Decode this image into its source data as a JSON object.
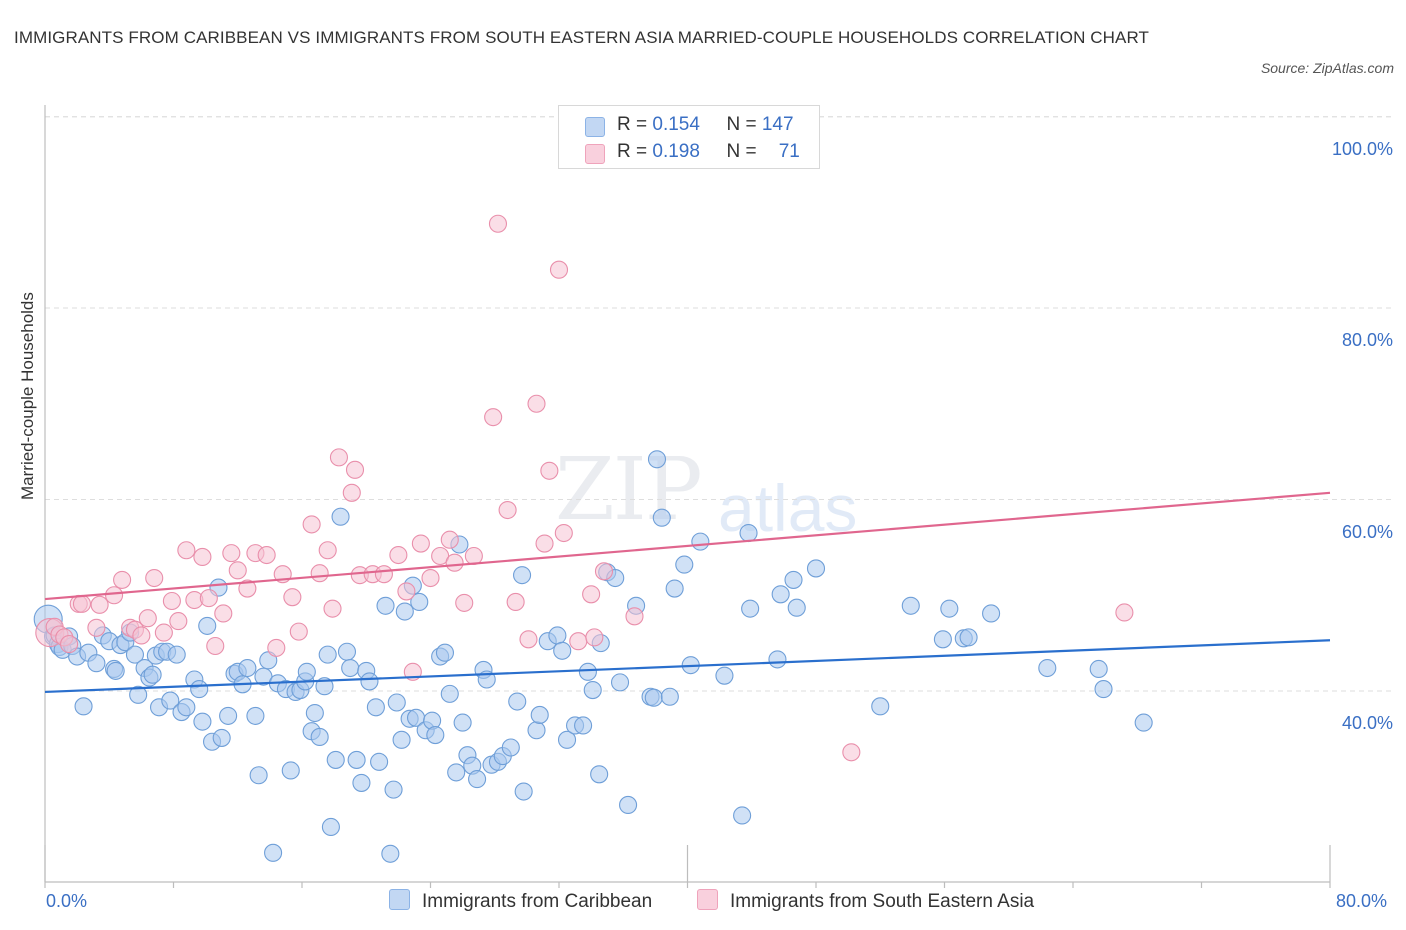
{
  "title": "IMMIGRANTS FROM CARIBBEAN VS IMMIGRANTS FROM SOUTH EASTERN ASIA MARRIED-COUPLE HOUSEHOLDS CORRELATION CHART",
  "source": "Source: ZipAtlas.com",
  "watermark": {
    "zip": "ZIP",
    "atlas": "atlas"
  },
  "legend": {
    "series1": {
      "r_label": "R = ",
      "r_value": "0.154",
      "n_label": "N = ",
      "n_value": "147"
    },
    "series2": {
      "r_label": "R = ",
      "r_value": "0.198",
      "n_label": "N = ",
      "n_value": "71"
    }
  },
  "colors": {
    "blue_fill": "#aac8ef",
    "blue_stroke": "#6f9fd8",
    "blue_line": "#2a6fcd",
    "pink_fill": "#f6c3d3",
    "pink_stroke": "#e98fab",
    "pink_line": "#e0668e",
    "axis_text": "#3a6fc4"
  },
  "chart_data": {
    "type": "scatter",
    "title": "IMMIGRANTS FROM CARIBBEAN VS IMMIGRANTS FROM SOUTH EASTERN ASIA MARRIED-COUPLE HOUSEHOLDS CORRELATION CHART",
    "xlabel": "",
    "ylabel": "Married-couple Households",
    "xlim": [
      0,
      80
    ],
    "ylim": [
      20,
      104
    ],
    "x_tick_labels": [
      "0.0%",
      "80.0%"
    ],
    "y_ticks": [
      40,
      60,
      80,
      100
    ],
    "y_tick_labels": [
      "40.0%",
      "60.0%",
      "80.0%",
      "100.0%"
    ],
    "grid": true,
    "legend_position": "bottom",
    "series": [
      {
        "name": "Immigrants from Caribbean",
        "R": 0.154,
        "N": 147,
        "trend": {
          "x": [
            0,
            80
          ],
          "y": [
            39.9,
            45.3
          ]
        },
        "points": [
          [
            0.2,
            47.5
          ],
          [
            0.5,
            45.7
          ],
          [
            0.6,
            45.8
          ],
          [
            0.8,
            44.9
          ],
          [
            0.9,
            44.6
          ],
          [
            1.1,
            44.3
          ],
          [
            1.5,
            45.7
          ],
          [
            1.7,
            44.7
          ],
          [
            2.0,
            43.6
          ],
          [
            2.4,
            38.4
          ],
          [
            2.7,
            44.0
          ],
          [
            3.2,
            42.9
          ],
          [
            3.6,
            45.8
          ],
          [
            4.0,
            45.2
          ],
          [
            4.3,
            42.3
          ],
          [
            4.4,
            42.1
          ],
          [
            4.7,
            44.8
          ],
          [
            5.0,
            45.1
          ],
          [
            5.3,
            46.1
          ],
          [
            5.6,
            43.8
          ],
          [
            5.8,
            39.6
          ],
          [
            6.2,
            42.4
          ],
          [
            6.5,
            41.4
          ],
          [
            6.7,
            41.7
          ],
          [
            6.9,
            43.7
          ],
          [
            7.1,
            38.3
          ],
          [
            7.3,
            44.1
          ],
          [
            7.6,
            44.1
          ],
          [
            7.8,
            39.0
          ],
          [
            8.2,
            43.8
          ],
          [
            8.5,
            37.8
          ],
          [
            8.8,
            38.3
          ],
          [
            9.3,
            41.2
          ],
          [
            9.6,
            40.2
          ],
          [
            9.8,
            36.8
          ],
          [
            10.1,
            46.8
          ],
          [
            10.4,
            34.7
          ],
          [
            10.8,
            50.8
          ],
          [
            11.0,
            35.1
          ],
          [
            11.4,
            37.4
          ],
          [
            11.8,
            41.8
          ],
          [
            12.0,
            42.0
          ],
          [
            12.3,
            40.7
          ],
          [
            12.6,
            42.4
          ],
          [
            13.1,
            37.4
          ],
          [
            13.3,
            31.2
          ],
          [
            13.6,
            41.5
          ],
          [
            13.9,
            43.2
          ],
          [
            14.2,
            23.1
          ],
          [
            14.5,
            40.8
          ],
          [
            15.0,
            40.2
          ],
          [
            15.3,
            31.7
          ],
          [
            15.6,
            39.9
          ],
          [
            15.9,
            40.1
          ],
          [
            16.2,
            41.0
          ],
          [
            16.3,
            42.0
          ],
          [
            16.6,
            35.8
          ],
          [
            16.8,
            37.7
          ],
          [
            17.1,
            35.2
          ],
          [
            17.4,
            40.5
          ],
          [
            17.6,
            43.8
          ],
          [
            17.8,
            25.8
          ],
          [
            18.1,
            32.8
          ],
          [
            18.4,
            58.2
          ],
          [
            18.8,
            44.1
          ],
          [
            19.0,
            42.4
          ],
          [
            19.4,
            32.8
          ],
          [
            19.7,
            30.4
          ],
          [
            20.0,
            42.1
          ],
          [
            20.2,
            41.0
          ],
          [
            20.6,
            38.3
          ],
          [
            20.8,
            32.6
          ],
          [
            21.2,
            48.9
          ],
          [
            21.5,
            23.0
          ],
          [
            21.7,
            29.7
          ],
          [
            21.9,
            38.8
          ],
          [
            22.2,
            34.9
          ],
          [
            22.4,
            48.3
          ],
          [
            22.7,
            37.1
          ],
          [
            22.9,
            51.0
          ],
          [
            23.1,
            37.2
          ],
          [
            23.3,
            49.3
          ],
          [
            23.7,
            35.9
          ],
          [
            24.1,
            36.9
          ],
          [
            24.3,
            35.4
          ],
          [
            24.6,
            43.6
          ],
          [
            24.9,
            44.0
          ],
          [
            25.2,
            39.7
          ],
          [
            25.6,
            31.5
          ],
          [
            25.8,
            55.3
          ],
          [
            26.0,
            36.7
          ],
          [
            26.3,
            33.3
          ],
          [
            26.6,
            32.2
          ],
          [
            26.9,
            30.8
          ],
          [
            27.3,
            42.2
          ],
          [
            27.5,
            41.2
          ],
          [
            27.8,
            32.3
          ],
          [
            28.2,
            32.6
          ],
          [
            28.5,
            33.2
          ],
          [
            29.0,
            34.1
          ],
          [
            29.4,
            38.9
          ],
          [
            29.7,
            52.1
          ],
          [
            29.8,
            29.5
          ],
          [
            30.6,
            35.9
          ],
          [
            30.8,
            37.5
          ],
          [
            31.3,
            45.2
          ],
          [
            31.9,
            45.8
          ],
          [
            32.2,
            44.2
          ],
          [
            32.5,
            34.9
          ],
          [
            33.0,
            36.4
          ],
          [
            33.5,
            36.4
          ],
          [
            33.8,
            42.0
          ],
          [
            34.1,
            40.1
          ],
          [
            34.5,
            31.3
          ],
          [
            34.6,
            45.0
          ],
          [
            35.0,
            52.4
          ],
          [
            35.5,
            51.8
          ],
          [
            35.8,
            40.9
          ],
          [
            36.3,
            28.1
          ],
          [
            36.8,
            48.9
          ],
          [
            37.7,
            39.4
          ],
          [
            37.9,
            39.3
          ],
          [
            38.1,
            64.2
          ],
          [
            38.4,
            58.1
          ],
          [
            38.9,
            39.4
          ],
          [
            39.2,
            50.7
          ],
          [
            39.8,
            53.2
          ],
          [
            40.2,
            42.7
          ],
          [
            40.8,
            55.6
          ],
          [
            42.3,
            41.6
          ],
          [
            43.4,
            27.0
          ],
          [
            43.8,
            56.5
          ],
          [
            43.9,
            48.6
          ],
          [
            45.6,
            43.3
          ],
          [
            45.8,
            50.1
          ],
          [
            46.6,
            51.6
          ],
          [
            46.8,
            48.7
          ],
          [
            48.0,
            52.8
          ],
          [
            52.0,
            38.4
          ],
          [
            53.9,
            48.9
          ],
          [
            55.9,
            45.4
          ],
          [
            56.3,
            48.6
          ],
          [
            57.2,
            45.5
          ],
          [
            57.5,
            45.6
          ],
          [
            58.9,
            48.1
          ],
          [
            62.4,
            42.4
          ],
          [
            65.6,
            42.3
          ],
          [
            65.9,
            40.2
          ],
          [
            68.4,
            36.7
          ]
        ]
      },
      {
        "name": "Immigrants from South Eastern Asia",
        "R": 0.198,
        "N": 71,
        "trend": {
          "x": [
            0,
            80
          ],
          "y": [
            49.6,
            60.7
          ]
        },
        "points": [
          [
            0.3,
            46.1
          ],
          [
            0.6,
            46.7
          ],
          [
            0.9,
            45.9
          ],
          [
            1.2,
            45.6
          ],
          [
            1.5,
            44.9
          ],
          [
            2.1,
            49.1
          ],
          [
            2.3,
            49.1
          ],
          [
            3.2,
            46.6
          ],
          [
            3.4,
            49.0
          ],
          [
            4.3,
            50.0
          ],
          [
            4.8,
            51.6
          ],
          [
            5.3,
            46.6
          ],
          [
            5.6,
            46.4
          ],
          [
            6.0,
            45.8
          ],
          [
            6.4,
            47.6
          ],
          [
            6.8,
            51.8
          ],
          [
            7.4,
            46.1
          ],
          [
            7.9,
            49.4
          ],
          [
            8.3,
            47.3
          ],
          [
            8.8,
            54.7
          ],
          [
            9.3,
            49.5
          ],
          [
            9.8,
            54.0
          ],
          [
            10.2,
            49.7
          ],
          [
            10.6,
            44.7
          ],
          [
            11.1,
            48.1
          ],
          [
            11.6,
            54.4
          ],
          [
            12.0,
            52.6
          ],
          [
            12.6,
            50.7
          ],
          [
            13.1,
            54.4
          ],
          [
            13.8,
            54.2
          ],
          [
            14.4,
            44.5
          ],
          [
            14.8,
            52.2
          ],
          [
            15.4,
            49.8
          ],
          [
            15.8,
            46.2
          ],
          [
            16.6,
            57.4
          ],
          [
            17.1,
            52.3
          ],
          [
            17.6,
            54.7
          ],
          [
            17.9,
            48.6
          ],
          [
            18.3,
            64.4
          ],
          [
            19.1,
            60.7
          ],
          [
            19.3,
            63.1
          ],
          [
            19.6,
            52.1
          ],
          [
            20.4,
            52.2
          ],
          [
            21.1,
            52.2
          ],
          [
            22.0,
            54.2
          ],
          [
            22.5,
            50.4
          ],
          [
            22.9,
            42.0
          ],
          [
            23.4,
            55.4
          ],
          [
            24.0,
            51.8
          ],
          [
            24.6,
            54.1
          ],
          [
            25.2,
            55.8
          ],
          [
            25.5,
            53.4
          ],
          [
            26.1,
            49.2
          ],
          [
            26.7,
            54.1
          ],
          [
            27.9,
            68.6
          ],
          [
            28.2,
            88.8
          ],
          [
            28.8,
            58.9
          ],
          [
            29.3,
            49.3
          ],
          [
            30.1,
            45.4
          ],
          [
            30.6,
            70.0
          ],
          [
            31.1,
            55.4
          ],
          [
            31.4,
            63.0
          ],
          [
            32.0,
            84.0
          ],
          [
            32.3,
            56.5
          ],
          [
            33.2,
            45.2
          ],
          [
            34.0,
            50.1
          ],
          [
            34.2,
            45.6
          ],
          [
            34.8,
            52.5
          ],
          [
            36.7,
            47.8
          ],
          [
            50.2,
            33.6
          ],
          [
            67.2,
            48.2
          ]
        ]
      }
    ]
  }
}
